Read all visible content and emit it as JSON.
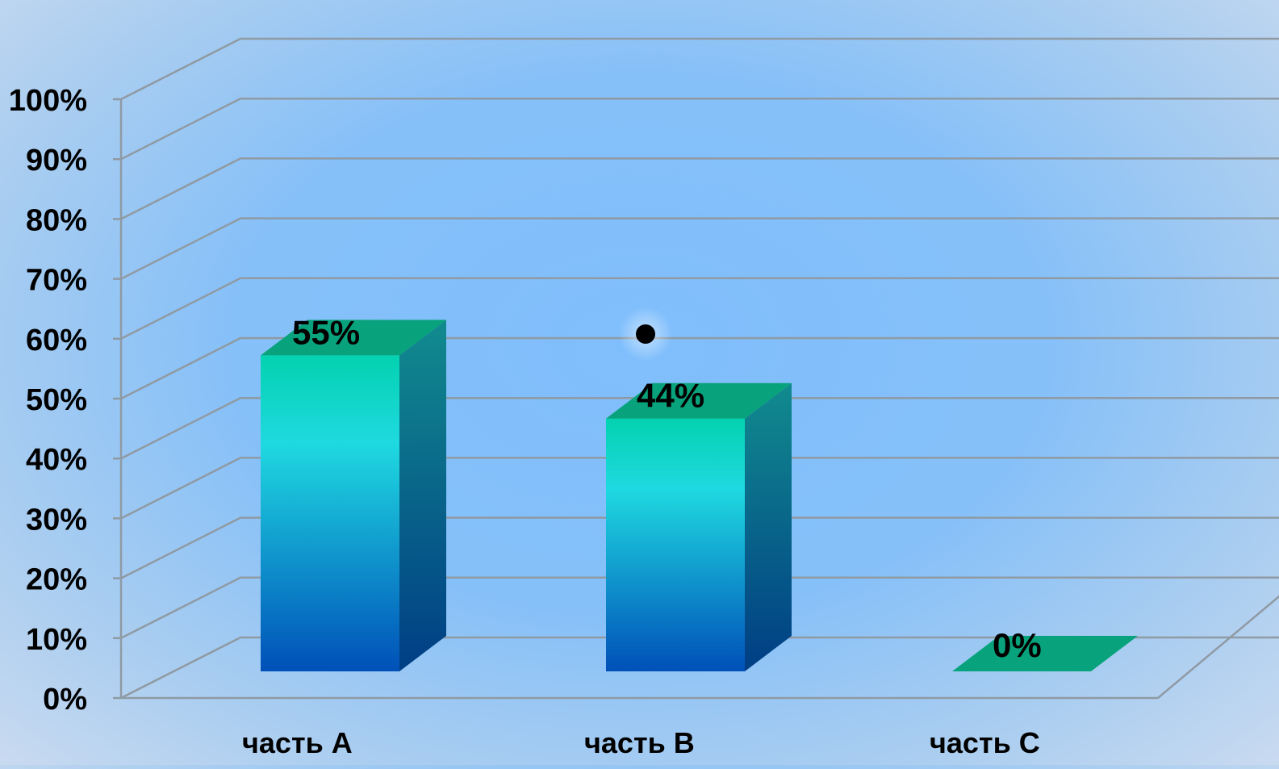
{
  "chart_data": {
    "type": "bar",
    "categories": [
      "часть A",
      "часть B",
      "часть C"
    ],
    "values": [
      55,
      44,
      0
    ],
    "value_labels": [
      "55%",
      "44%",
      "0%"
    ],
    "y_tick_labels": [
      "0%",
      "10%",
      "20%",
      "30%",
      "40%",
      "50%",
      "60%",
      "70%",
      "80%",
      "90%",
      "100%"
    ],
    "ylim": [
      0,
      100
    ],
    "grid": true,
    "legend": "none",
    "style": "3d-column",
    "colors": {
      "bar_top": "#03d2b0",
      "bar_mid": "#1fd9e0",
      "bar_bottom": "#0050b8",
      "bar_side_top": "#118b8e",
      "bar_side_bottom": "#003e85",
      "bar_cap": "#08a37c",
      "gridline": "#8f9aa3",
      "background": "#86c0f8"
    }
  }
}
